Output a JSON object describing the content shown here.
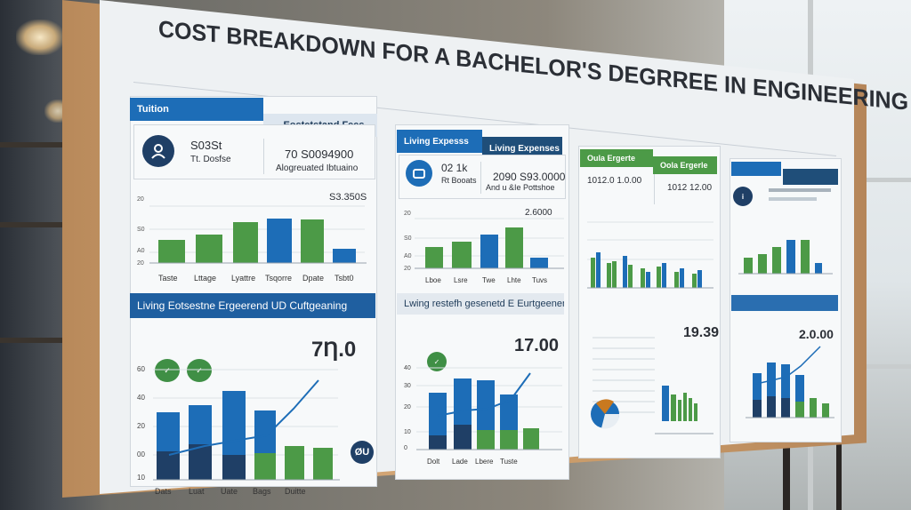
{
  "title": "COST BREAKDOWN FOR A BACHELOR'S DEGRREE IN ENGINEERING IN TURRKD  TURKIYE",
  "panel1": {
    "hdr_left": "Tuition",
    "hdr_right": "Eostetstand Fees",
    "val1a": "S03St",
    "val1b": "Tt. Dosfse",
    "val2a": "70 S0094900",
    "val2b": "Alogreuated Ibtuaino",
    "top_value": "S3.350S",
    "ticks": [
      "20",
      "S0",
      "A0",
      "20"
    ],
    "categories": [
      "Taste",
      "Lttage",
      "Lyattre",
      "Tsqorre",
      "Dpate",
      "Tsbt0"
    ],
    "banner": "Living Eotsestne Ergeerend UD Cuftgeaning",
    "big_value": "7Ƞ.0",
    "bottom_categories": [
      "Dats",
      "Luat",
      "Uate",
      "Bags",
      "Duitte"
    ],
    "badge_right": "ØU",
    "bottom_ticks": [
      "60",
      "40",
      "20",
      "00",
      "10"
    ]
  },
  "panel2": {
    "hdr_left": "Living Expesss",
    "hdr_right": "Living Expenses",
    "val1a": "02  1k",
    "val1b": "Rt Booats",
    "val2a": "2090 S93.0000",
    "val2b": "And u &Ie Pottshoe",
    "top_value": "2.6000",
    "ticks": [
      "20",
      "S0",
      "A0",
      "20"
    ],
    "categories": [
      "Lboe",
      "Lsre",
      "Twe",
      "Lhte",
      "Tuvs"
    ],
    "banner": "Lwing restefh gesenetd E Eurtgeenent",
    "big_value": "17.00",
    "bottom_ticks": [
      "40",
      "30",
      "20",
      "10",
      "0"
    ],
    "bottom_categories": [
      "Dolt",
      "Lade",
      "Lbere",
      "Tuste"
    ]
  },
  "panel3": {
    "hdr_left": "Oula Ergerte",
    "hdr_right": "Oola Ergerle",
    "val1a": "1012.0  1.0.00",
    "val2a": "1012 12.00",
    "big_value": "19.39"
  },
  "panel4": {
    "big_value": "2.0.00"
  },
  "colors": {
    "blue": "#1d6db7",
    "navy": "#1f4e79",
    "green": "#4c9a47",
    "dark_blue": "#2a4f7a"
  }
}
